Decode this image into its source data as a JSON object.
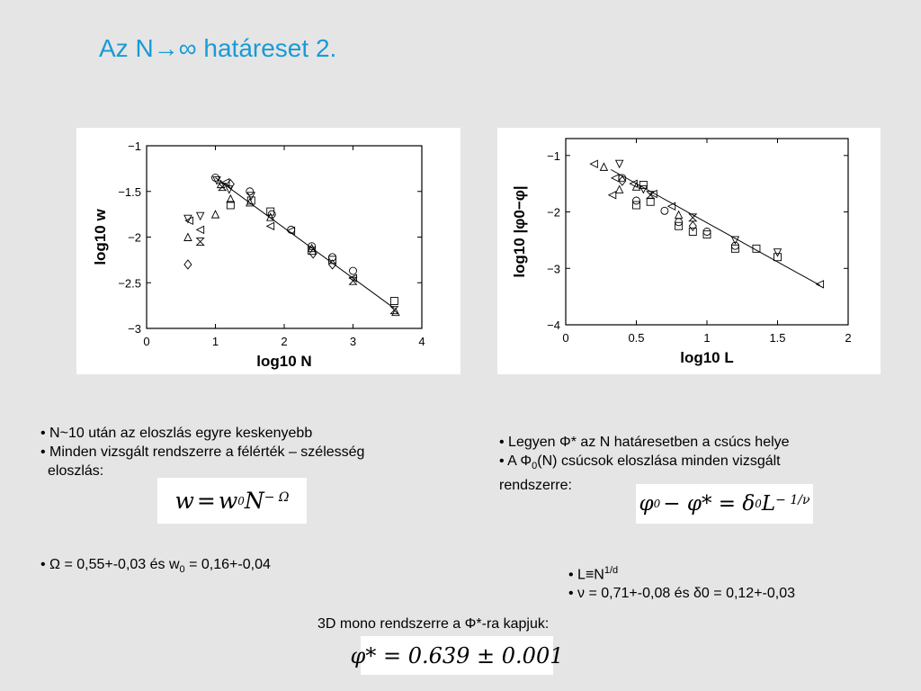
{
  "title": "Az N→∞ határeset 2.",
  "left_bullets": {
    "b1": "• N~10 után az eloszlás egyre keskenyebb",
    "b2": "• Minden vizsgált rendszerre a félérték – szélesség",
    "b3": "eloszlás:"
  },
  "left_formula": {
    "lhs": "w",
    "eq": "=",
    "w": "w",
    "sub0": "0",
    "N": "N",
    "exp": "− Ω"
  },
  "left_result": {
    "prefix": "• Ω = 0,55+-0,03 és w",
    "sub": "0",
    "suffix": " = 0,16+-0,04"
  },
  "right_bullets": {
    "b1": "• Legyen Φ* az N határesetben a csúcs helye",
    "b2_prefix": "• A Φ",
    "b2_sub": "0",
    "b2_suffix": "(N) csúcsok eloszlása minden vizsgált",
    "b3": "rendszerre:"
  },
  "right_formula": {
    "phi": "φ",
    "sub0": "0",
    "minus": "− φ* = δ",
    "sub0b": "0",
    "L": "L",
    "exp": "− 1/ν"
  },
  "right_notes": {
    "n1_prefix": "• L≡N",
    "n1_sup": "1/d",
    "n2": "• ν = 0,71+-0,08 és δ0 = 0,12+-0,03"
  },
  "bottom": {
    "caption": "3D mono rendszerre a Φ*-ra kapjuk:",
    "formula": "φ* = 0.639 ± 0.001"
  },
  "chart_data": [
    {
      "type": "scatter",
      "xlabel": "log10 N",
      "ylabel": "log10 w",
      "xlim": [
        0,
        4
      ],
      "ylim": [
        -3,
        -1
      ],
      "xticks": [
        "0",
        "1",
        "2",
        "3",
        "4"
      ],
      "yticks": [
        "−1",
        "−1.5",
        "−2",
        "−2.5",
        "−3"
      ],
      "fit_line": [
        [
          1.0,
          -1.35
        ],
        [
          3.6,
          -2.78
        ]
      ],
      "points": [
        {
          "x": 0.6,
          "y": -2.3,
          "m": "diamond"
        },
        {
          "x": 0.6,
          "y": -2.0,
          "m": "triangle"
        },
        {
          "x": 0.6,
          "y": -1.8,
          "m": "triangle-down"
        },
        {
          "x": 0.62,
          "y": -1.82,
          "m": "triangle-left"
        },
        {
          "x": 0.78,
          "y": -2.05,
          "m": "hourglass"
        },
        {
          "x": 0.78,
          "y": -1.92,
          "m": "triangle-left"
        },
        {
          "x": 0.78,
          "y": -1.77,
          "m": "triangle-down"
        },
        {
          "x": 1.0,
          "y": -1.35,
          "m": "circle"
        },
        {
          "x": 1.02,
          "y": -1.38,
          "m": "triangle-down"
        },
        {
          "x": 1.0,
          "y": -1.75,
          "m": "triangle"
        },
        {
          "x": 1.08,
          "y": -1.42,
          "m": "triangle"
        },
        {
          "x": 1.1,
          "y": -1.45,
          "m": "hourglass"
        },
        {
          "x": 1.15,
          "y": -1.4,
          "m": "triangle-left"
        },
        {
          "x": 1.2,
          "y": -1.48,
          "m": "triangle-down"
        },
        {
          "x": 1.22,
          "y": -1.42,
          "m": "diamond"
        },
        {
          "x": 1.22,
          "y": -1.65,
          "m": "square"
        },
        {
          "x": 1.22,
          "y": -1.58,
          "m": "triangle"
        },
        {
          "x": 1.5,
          "y": -1.5,
          "m": "circle"
        },
        {
          "x": 1.52,
          "y": -1.6,
          "m": "square"
        },
        {
          "x": 1.5,
          "y": -1.62,
          "m": "triangle"
        },
        {
          "x": 1.52,
          "y": -1.55,
          "m": "triangle-down"
        },
        {
          "x": 1.8,
          "y": -1.72,
          "m": "square"
        },
        {
          "x": 1.8,
          "y": -1.78,
          "m": "triangle"
        },
        {
          "x": 1.8,
          "y": -1.88,
          "m": "triangle-left"
        },
        {
          "x": 1.82,
          "y": -1.75,
          "m": "circle"
        },
        {
          "x": 2.1,
          "y": -1.92,
          "m": "circle"
        },
        {
          "x": 2.1,
          "y": -1.93,
          "m": "triangle-left"
        },
        {
          "x": 2.4,
          "y": -2.1,
          "m": "circle"
        },
        {
          "x": 2.4,
          "y": -2.12,
          "m": "triangle"
        },
        {
          "x": 2.4,
          "y": -2.15,
          "m": "square"
        },
        {
          "x": 2.42,
          "y": -2.18,
          "m": "diamond"
        },
        {
          "x": 2.7,
          "y": -2.22,
          "m": "circle"
        },
        {
          "x": 2.7,
          "y": -2.25,
          "m": "square"
        },
        {
          "x": 2.7,
          "y": -2.3,
          "m": "diamond"
        },
        {
          "x": 3.0,
          "y": -2.37,
          "m": "circle"
        },
        {
          "x": 3.0,
          "y": -2.45,
          "m": "triangle-left"
        },
        {
          "x": 3.0,
          "y": -2.48,
          "m": "hourglass"
        },
        {
          "x": 3.6,
          "y": -2.7,
          "m": "square"
        },
        {
          "x": 3.6,
          "y": -2.8,
          "m": "hourglass"
        },
        {
          "x": 3.62,
          "y": -2.82,
          "m": "triangle"
        }
      ]
    },
    {
      "type": "scatter",
      "xlabel": "log10 L",
      "ylabel": "log10 |φ0−φ|",
      "xlim": [
        0,
        2
      ],
      "ylim": [
        -4,
        -0.7
      ],
      "xticks": [
        "0",
        "0.5",
        "1",
        "1.5",
        "2"
      ],
      "yticks": [
        "−1",
        "−2",
        "−3",
        "−4"
      ],
      "fit_line": [
        [
          0.32,
          -1.25
        ],
        [
          1.8,
          -3.3
        ]
      ],
      "points": [
        {
          "x": 0.2,
          "y": -1.15,
          "m": "triangle-left"
        },
        {
          "x": 0.27,
          "y": -1.2,
          "m": "triangle"
        },
        {
          "x": 0.35,
          "y": -1.4,
          "m": "triangle-left"
        },
        {
          "x": 0.38,
          "y": -1.15,
          "m": "triangle-down"
        },
        {
          "x": 0.4,
          "y": -1.4,
          "m": "circle"
        },
        {
          "x": 0.4,
          "y": -1.45,
          "m": "diamond"
        },
        {
          "x": 0.33,
          "y": -1.7,
          "m": "triangle-left"
        },
        {
          "x": 0.38,
          "y": -1.6,
          "m": "triangle"
        },
        {
          "x": 0.48,
          "y": -1.5,
          "m": "triangle-left"
        },
        {
          "x": 0.5,
          "y": -1.55,
          "m": "triangle"
        },
        {
          "x": 0.5,
          "y": -1.8,
          "m": "circle"
        },
        {
          "x": 0.5,
          "y": -1.88,
          "m": "square"
        },
        {
          "x": 0.55,
          "y": -1.52,
          "m": "square"
        },
        {
          "x": 0.55,
          "y": -1.6,
          "m": "triangle-down"
        },
        {
          "x": 0.6,
          "y": -1.7,
          "m": "hourglass"
        },
        {
          "x": 0.6,
          "y": -1.82,
          "m": "square"
        },
        {
          "x": 0.62,
          "y": -1.68,
          "m": "triangle-left"
        },
        {
          "x": 0.7,
          "y": -1.98,
          "m": "circle"
        },
        {
          "x": 0.75,
          "y": -1.9,
          "m": "triangle-left"
        },
        {
          "x": 0.8,
          "y": -2.05,
          "m": "triangle"
        },
        {
          "x": 0.8,
          "y": -2.18,
          "m": "circle"
        },
        {
          "x": 0.8,
          "y": -2.25,
          "m": "square"
        },
        {
          "x": 0.9,
          "y": -2.1,
          "m": "hourglass"
        },
        {
          "x": 0.9,
          "y": -2.25,
          "m": "diamond"
        },
        {
          "x": 0.9,
          "y": -2.35,
          "m": "square"
        },
        {
          "x": 1.0,
          "y": -2.35,
          "m": "circle"
        },
        {
          "x": 1.0,
          "y": -2.4,
          "m": "square"
        },
        {
          "x": 1.2,
          "y": -2.5,
          "m": "triangle-down"
        },
        {
          "x": 1.2,
          "y": -2.6,
          "m": "circle"
        },
        {
          "x": 1.2,
          "y": -2.65,
          "m": "square"
        },
        {
          "x": 1.35,
          "y": -2.65,
          "m": "square"
        },
        {
          "x": 1.5,
          "y": -2.72,
          "m": "triangle-down"
        },
        {
          "x": 1.5,
          "y": -2.8,
          "m": "square"
        },
        {
          "x": 1.8,
          "y": -3.28,
          "m": "triangle-left"
        }
      ]
    }
  ]
}
